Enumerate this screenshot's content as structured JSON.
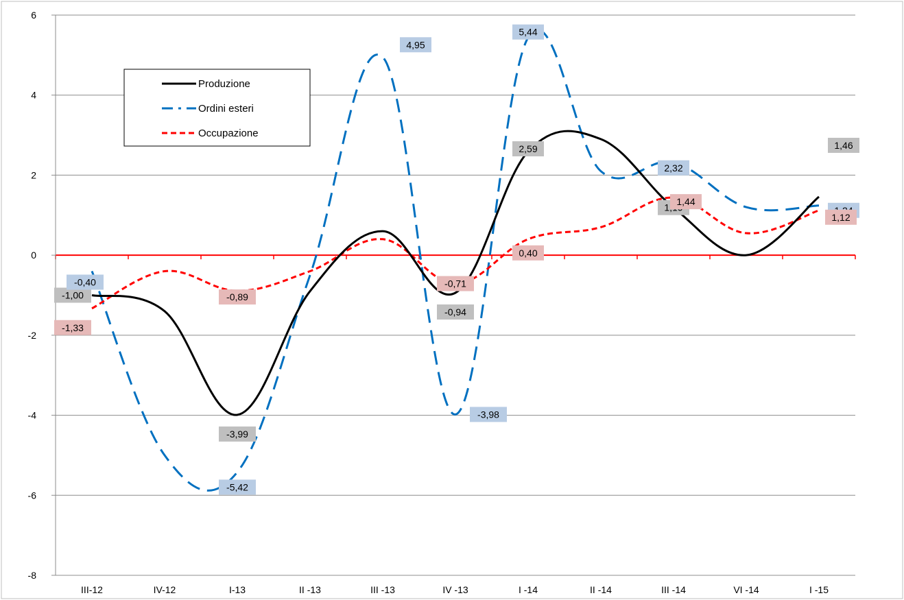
{
  "chart_data": {
    "type": "line",
    "categories": [
      "III-12",
      "IV-12",
      "I-13",
      "II -13",
      "III -13",
      "IV -13",
      "I -14",
      "II -14",
      "III -14",
      "VI -14",
      "I -15"
    ],
    "ylim": [
      -8,
      6
    ],
    "yticks": [
      -8,
      -6,
      -4,
      -2,
      0,
      2,
      4,
      6
    ],
    "ytick_labels": [
      "-8",
      "-6",
      "-4",
      "-2",
      "0",
      "2",
      "4",
      "6"
    ],
    "grid": true,
    "legend_position": "top-left",
    "zero_line_color": "#ff0000",
    "series": [
      {
        "name": "Produzione",
        "color": "#000000",
        "dash": "solid",
        "values": [
          -1.0,
          -1.4,
          -3.99,
          -0.9,
          0.6,
          -0.94,
          2.59,
          2.9,
          1.19,
          0.0,
          1.46
        ],
        "labels": [
          "-1,00",
          "",
          "-3,99",
          "",
          "",
          "-0,94",
          "2,59",
          "",
          "1,19",
          "",
          "1,46"
        ],
        "label_fill": "#bfbfbf"
      },
      {
        "name": "Ordini esteri",
        "color": "#0070c0",
        "dash": "long-dash",
        "values": [
          -0.4,
          -5.0,
          -5.42,
          -0.5,
          4.95,
          -3.98,
          5.44,
          2.1,
          2.32,
          1.2,
          1.24
        ],
        "labels": [
          "-0,40",
          "",
          "-5,42",
          "",
          "4,95",
          "-3,98",
          "5,44",
          "",
          "2,32",
          "",
          "1,24"
        ],
        "label_fill": "#b8cce4"
      },
      {
        "name": "Occupazione",
        "color": "#ff0000",
        "dash": "short-dash",
        "values": [
          -1.33,
          -0.4,
          -0.89,
          -0.4,
          0.4,
          -0.71,
          0.4,
          0.7,
          1.44,
          0.55,
          1.12
        ],
        "labels": [
          "-1,33",
          "",
          "-0,89",
          "",
          "",
          "-0,71",
          "0,40",
          "",
          "1,44",
          "",
          "1,12"
        ],
        "label_fill": "#e6b9b8"
      }
    ]
  }
}
